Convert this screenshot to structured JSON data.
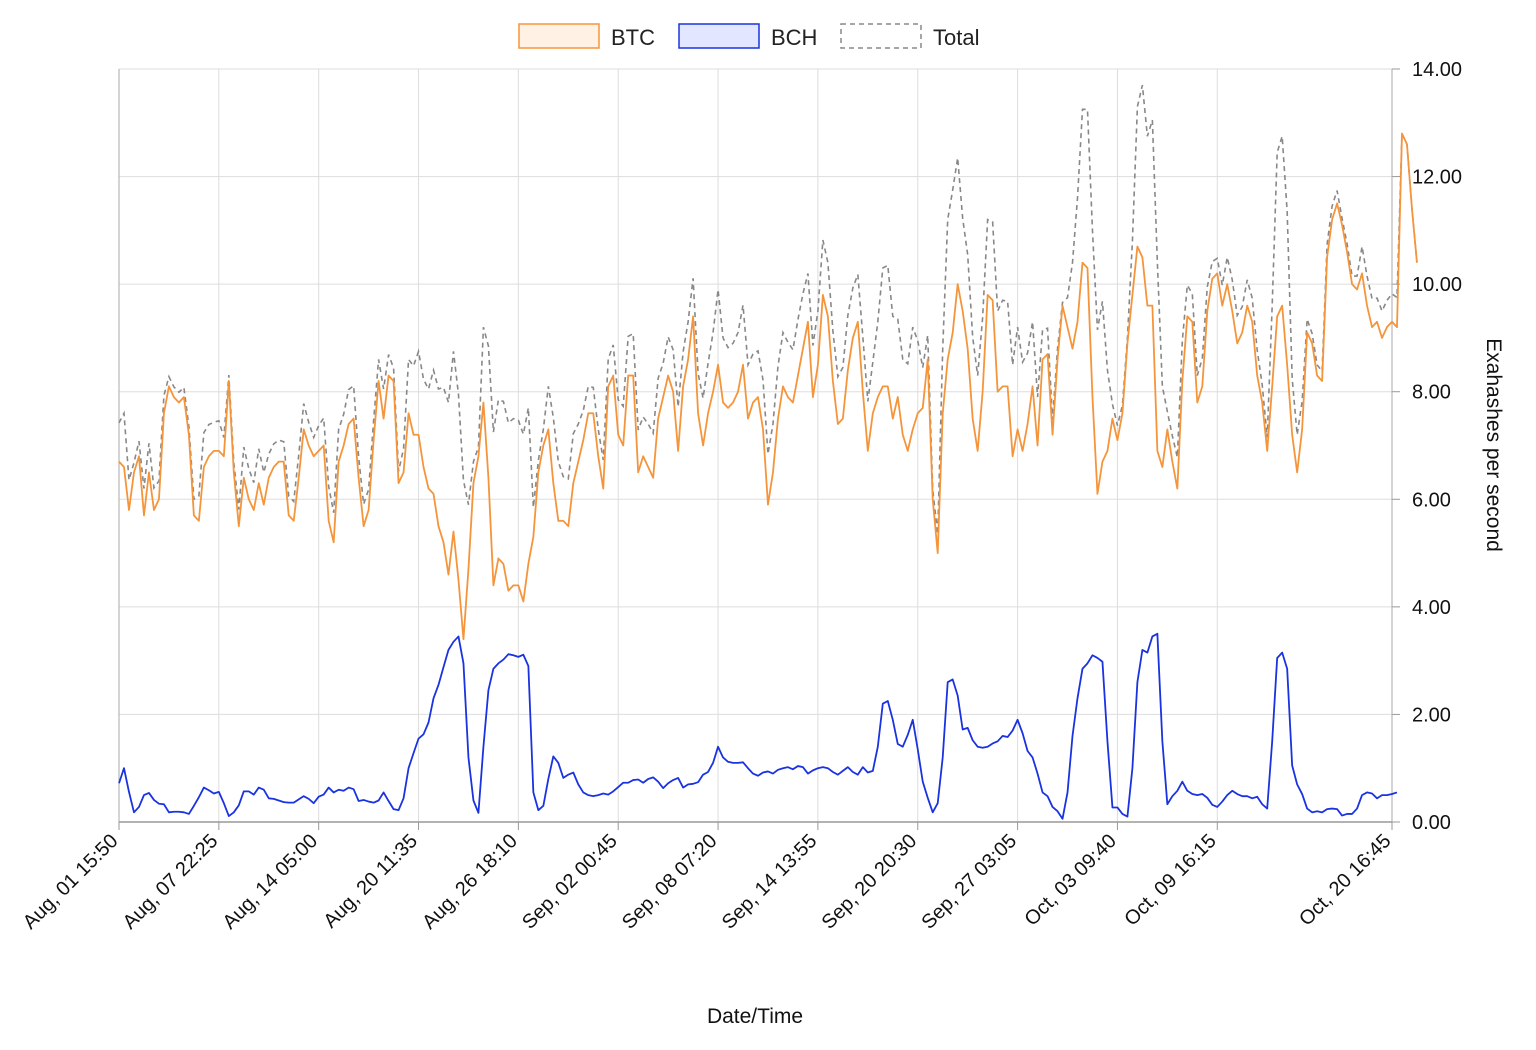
{
  "chart_data": {
    "type": "line",
    "xlabel": "Date/Time",
    "ylabel": "Exahashes per second",
    "ylim": [
      0,
      14
    ],
    "y_ticks": [
      "0.00",
      "2.00",
      "4.00",
      "6.00",
      "8.00",
      "10.00",
      "12.00",
      "14.00"
    ],
    "x_ticks": [
      "Aug, 01 15:50",
      "Aug, 07 22:25",
      "Aug, 14 05:00",
      "Aug, 20 11:35",
      "Aug, 26 18:10",
      "Sep, 02 00:45",
      "Sep, 08 07:20",
      "Sep, 14 13:55",
      "Sep, 20 20:30",
      "Sep, 27 03:05",
      "Oct, 03 09:40",
      "Oct, 09 16:15",
      "Oct, 20 16:45"
    ],
    "x_tick_index": [
      0,
      20,
      40,
      60,
      80,
      100,
      120,
      140,
      160,
      180,
      200,
      220,
      255
    ],
    "n_points": 256,
    "grid": true,
    "legend_position": "top",
    "series": [
      {
        "name": "BTC",
        "color": "#f5953b",
        "fill": "#fff1e4",
        "style": "solid",
        "values": [
          6.7,
          6.6,
          5.8,
          6.5,
          6.8,
          5.7,
          6.5,
          5.8,
          6.0,
          7.6,
          8.1,
          7.9,
          7.8,
          7.9,
          7.2,
          5.7,
          5.6,
          6.6,
          6.8,
          6.9,
          6.9,
          6.8,
          8.2,
          6.5,
          5.5,
          6.4,
          6.0,
          5.8,
          6.3,
          5.9,
          6.4,
          6.6,
          6.7,
          6.7,
          5.7,
          5.6,
          6.4,
          7.3,
          7.0,
          6.8,
          6.9,
          7.0,
          5.6,
          5.2,
          6.7,
          7.0,
          7.4,
          7.5,
          6.4,
          5.5,
          5.8,
          7.1,
          8.2,
          7.5,
          8.3,
          8.2,
          6.3,
          6.5,
          7.6,
          7.2,
          7.2,
          6.6,
          6.2,
          6.1,
          5.5,
          5.2,
          4.6,
          5.4,
          4.5,
          3.4,
          4.7,
          6.3,
          6.8,
          7.8,
          6.4,
          4.4,
          4.9,
          4.8,
          4.3,
          4.4,
          4.4,
          4.1,
          4.8,
          5.3,
          6.5,
          7.0,
          7.3,
          6.3,
          5.6,
          5.6,
          5.5,
          6.3,
          6.7,
          7.1,
          7.6,
          7.6,
          6.8,
          6.2,
          8.1,
          8.3,
          7.2,
          7.0,
          8.3,
          8.3,
          6.5,
          6.8,
          6.6,
          6.4,
          7.5,
          7.9,
          8.3,
          8.0,
          6.9,
          8.1,
          8.6,
          9.4,
          7.6,
          7.0,
          7.6,
          8.0,
          8.5,
          7.8,
          7.7,
          7.8,
          8.0,
          8.5,
          7.5,
          7.8,
          7.9,
          7.3,
          5.9,
          6.5,
          7.5,
          8.1,
          7.9,
          7.8,
          8.3,
          8.8,
          9.3,
          7.9,
          8.5,
          9.8,
          9.4,
          8.2,
          7.4,
          7.5,
          8.4,
          9.0,
          9.3,
          8.0,
          6.9,
          7.6,
          7.9,
          8.1,
          8.1,
          7.5,
          7.9,
          7.2,
          6.9,
          7.3,
          7.6,
          7.7,
          8.6,
          6.0,
          5.0,
          7.6,
          8.6,
          9.1,
          10.0,
          9.5,
          8.8,
          7.5,
          6.9,
          8.0,
          9.8,
          9.7,
          8.0,
          8.1,
          8.1,
          6.8,
          7.3,
          6.9,
          7.4,
          8.1,
          7.0,
          8.6,
          8.7,
          7.2,
          8.6,
          9.6,
          9.2,
          8.8,
          9.3,
          10.4,
          10.3,
          7.9,
          6.1,
          6.7,
          6.9,
          7.5,
          7.1,
          7.6,
          8.9,
          9.8,
          10.7,
          10.5,
          9.6,
          9.6,
          6.9,
          6.6,
          7.3,
          6.7,
          6.2,
          8.2,
          9.4,
          9.3,
          7.8,
          8.1,
          9.5,
          10.1,
          10.2,
          9.6,
          10.0,
          9.5,
          8.9,
          9.1,
          9.6,
          9.3,
          8.3,
          7.8,
          6.9,
          8.1,
          9.4,
          9.6,
          8.5,
          7.2,
          6.5,
          7.3,
          9.1,
          8.9,
          8.3,
          8.2,
          10.5,
          11.2,
          11.5,
          11.1,
          10.6,
          10.0,
          9.9,
          10.2,
          9.6,
          9.2,
          9.3,
          9.0,
          9.2,
          9.3,
          9.2,
          12.8,
          12.6,
          11.4,
          10.4
        ]
      },
      {
        "name": "BCH",
        "color": "#1a33e0",
        "fill": "#e3e6ff",
        "style": "solid",
        "values": [
          0.72,
          1.0,
          0.56,
          0.18,
          0.28,
          0.5,
          0.54,
          0.41,
          0.34,
          0.33,
          0.18,
          0.19,
          0.19,
          0.18,
          0.15,
          0.3,
          0.46,
          0.64,
          0.59,
          0.53,
          0.56,
          0.35,
          0.11,
          0.18,
          0.31,
          0.57,
          0.57,
          0.51,
          0.64,
          0.6,
          0.44,
          0.43,
          0.4,
          0.37,
          0.36,
          0.36,
          0.42,
          0.48,
          0.43,
          0.35,
          0.47,
          0.51,
          0.64,
          0.55,
          0.6,
          0.58,
          0.64,
          0.61,
          0.39,
          0.41,
          0.38,
          0.36,
          0.4,
          0.55,
          0.39,
          0.24,
          0.22,
          0.44,
          1.0,
          1.28,
          1.55,
          1.63,
          1.85,
          2.3,
          2.55,
          2.88,
          3.2,
          3.35,
          3.45,
          2.95,
          1.2,
          0.4,
          0.17,
          1.4,
          2.45,
          2.85,
          2.95,
          3.02,
          3.12,
          3.1,
          3.07,
          3.11,
          2.9,
          0.55,
          0.22,
          0.3,
          0.8,
          1.22,
          1.1,
          0.82,
          0.88,
          0.92,
          0.7,
          0.55,
          0.5,
          0.48,
          0.5,
          0.53,
          0.51,
          0.57,
          0.65,
          0.73,
          0.73,
          0.78,
          0.79,
          0.73,
          0.8,
          0.83,
          0.75,
          0.63,
          0.72,
          0.78,
          0.82,
          0.64,
          0.7,
          0.71,
          0.74,
          0.88,
          0.93,
          1.1,
          1.4,
          1.2,
          1.12,
          1.1,
          1.1,
          1.11,
          1.0,
          0.9,
          0.86,
          0.92,
          0.94,
          0.9,
          0.97,
          1.0,
          1.02,
          0.98,
          1.04,
          1.02,
          0.9,
          0.96,
          1.0,
          1.02,
          1.0,
          0.93,
          0.88,
          0.95,
          1.02,
          0.93,
          0.88,
          1.02,
          0.92,
          0.95,
          1.4,
          2.2,
          2.25,
          1.9,
          1.45,
          1.4,
          1.62,
          1.9,
          1.35,
          0.75,
          0.45,
          0.18,
          0.35,
          1.2,
          2.6,
          2.65,
          2.35,
          1.72,
          1.75,
          1.52,
          1.4,
          1.38,
          1.4,
          1.46,
          1.5,
          1.6,
          1.58,
          1.7,
          1.9,
          1.65,
          1.32,
          1.2,
          0.9,
          0.55,
          0.48,
          0.28,
          0.2,
          0.06,
          0.55,
          1.6,
          2.3,
          2.85,
          2.95,
          3.1,
          3.05,
          2.98,
          1.5,
          0.27,
          0.27,
          0.15,
          0.1,
          1.0,
          2.6,
          3.2,
          3.15,
          3.45,
          3.5,
          1.5,
          0.33,
          0.48,
          0.58,
          0.75,
          0.58,
          0.52,
          0.5,
          0.52,
          0.45,
          0.32,
          0.28,
          0.38,
          0.5,
          0.58,
          0.52,
          0.48,
          0.48,
          0.44,
          0.47,
          0.33,
          0.25,
          1.5,
          3.05,
          3.15,
          2.85,
          1.05,
          0.7,
          0.52,
          0.25,
          0.18,
          0.2,
          0.18,
          0.24,
          0.25,
          0.24,
          0.12,
          0.15,
          0.15,
          0.25,
          0.5,
          0.55,
          0.53,
          0.44,
          0.5,
          0.5,
          0.52,
          0.55
        ]
      },
      {
        "name": "Total",
        "color": "#888888",
        "fill": "#ffffff",
        "style": "dashed",
        "values": "BTC+BCH"
      }
    ]
  }
}
